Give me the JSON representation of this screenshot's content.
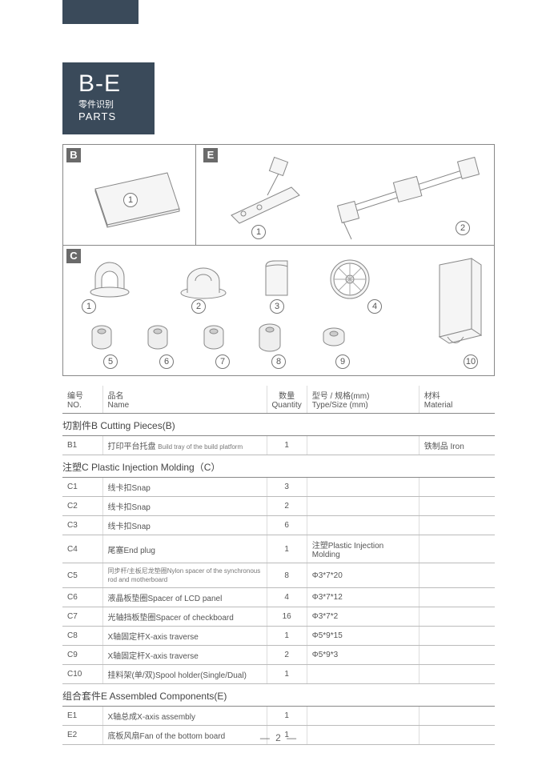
{
  "header": {
    "code": "B-E",
    "sub_cn": "零件识别",
    "sub_en": "PARTS"
  },
  "boxes": {
    "B": "B",
    "E": "E",
    "C": "C"
  },
  "table": {
    "headers": {
      "no_cn": "编号",
      "no_en": "NO.",
      "name_cn": "品名",
      "name_en": "Name",
      "qty_cn": "数量",
      "qty_en": "Quantity",
      "type_cn": "型号 / 规格(mm)",
      "type_en": "Type/Size (mm)",
      "mat_cn": "材料",
      "mat_en": "Material"
    },
    "section_b": "切割件B Cutting Pieces(B)",
    "row_b1": {
      "no": "B1",
      "name": "打印平台托盘",
      "name2": "Build tray of the build platform",
      "qty": "1",
      "type": "",
      "mat": "铁制品 Iron"
    },
    "section_c": "注塑C Plastic Injection Molding（C）",
    "rows_c": [
      {
        "no": "C1",
        "name": "线卡扣Snap",
        "qty": "3",
        "type": "",
        "mat": ""
      },
      {
        "no": "C2",
        "name": "线卡扣Snap",
        "qty": "2",
        "type": "",
        "mat": ""
      },
      {
        "no": "C3",
        "name": "线卡扣Snap",
        "qty": "6",
        "type": "",
        "mat": ""
      },
      {
        "no": "C4",
        "name": "尾塞End plug",
        "qty": "1",
        "type": "注塑Plastic Injection Molding",
        "mat": ""
      },
      {
        "no": "C5",
        "name": "同步杆/主板尼龙垫圈Nylon spacer of the synchronous rod and motherboard",
        "small": true,
        "qty": "8",
        "type": "Φ3*7*20",
        "mat": ""
      },
      {
        "no": "C6",
        "name": "液晶板垫圈Spacer of LCD panel",
        "qty": "4",
        "type": "Φ3*7*12",
        "mat": ""
      },
      {
        "no": "C7",
        "name": "光轴挡板垫圈Spacer of checkboard",
        "qty": "16",
        "type": "Φ3*7*2",
        "mat": ""
      },
      {
        "no": "C8",
        "name": "X轴固定杆X-axis traverse",
        "qty": "1",
        "type": "Φ5*9*15",
        "mat": ""
      },
      {
        "no": "C9",
        "name": "X轴固定杆X-axis traverse",
        "qty": "2",
        "type": "Φ5*9*3",
        "mat": ""
      },
      {
        "no": "C10",
        "name": "挂料架(单/双)Spool holder(Single/Dual)",
        "qty": "1",
        "type": "",
        "mat": ""
      }
    ],
    "section_e": "组合套件E Assembled Components(E)",
    "rows_e": [
      {
        "no": "E1",
        "name": "X轴总成X-axis assembly",
        "qty": "1",
        "type": "",
        "mat": ""
      },
      {
        "no": "E2",
        "name": "底板风扇Fan of the bottom board",
        "qty": "1",
        "type": "",
        "mat": ""
      }
    ]
  },
  "page_number": "—  2  —",
  "colors": {
    "header_bg": "#3a4a5a",
    "line": "#888"
  }
}
